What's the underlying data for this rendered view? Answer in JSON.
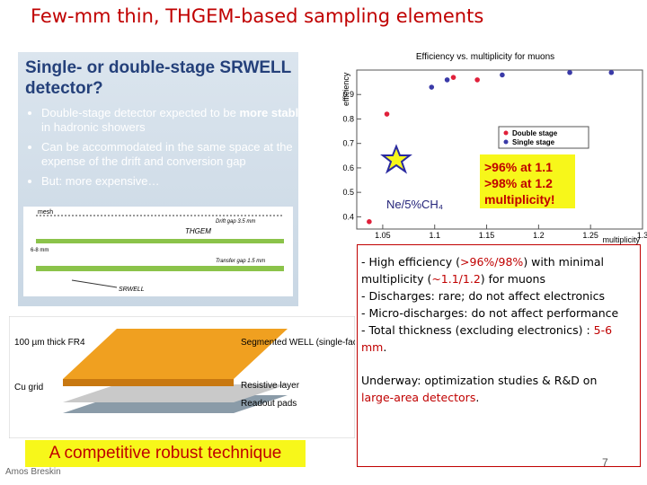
{
  "title": "Few-mm thin, THGEM-based sampling elements",
  "left_panel": {
    "heading": "Single- or double-stage SRWELL detector?",
    "bullets": [
      {
        "runs": [
          {
            "text": "Double-stage detector expected to be "
          },
          {
            "text": "more stable",
            "bold": true
          },
          {
            "text": " in hadronic showers"
          }
        ]
      },
      {
        "runs": [
          {
            "text": "Can be accommodated in the same space at the expense of the drift and conversion gap"
          }
        ]
      },
      {
        "runs": [
          {
            "text": "But: more expensive…"
          }
        ]
      }
    ],
    "diagram_labels": {
      "mesh": "mesh",
      "drift": "Drift gap 3.5 mm",
      "thgem": "THGEM",
      "height": "6-8 mm",
      "transfer": "Transfer gap 1.5 mm",
      "srwell": "SRWELL"
    }
  },
  "lower_diagram": {
    "fr4": "100 µm thick FR4",
    "cu": "Cu grid",
    "well": "Segmented WELL (single-faced THGEM)",
    "resistive": "Resistive layer",
    "pads": "Readout pads"
  },
  "chart_data": {
    "type": "scatter",
    "title": "Efficiency vs. multiplicity for muons",
    "x_label": "multiplicity",
    "y_label": "efficiency",
    "xlim": [
      1.025,
      1.3
    ],
    "ylim": [
      0.35,
      1.0
    ],
    "xticks": [
      1.05,
      1.1,
      1.15,
      1.2,
      1.25,
      1.3
    ],
    "yticks": [
      0.4,
      0.5,
      0.6,
      0.7,
      0.8,
      0.9
    ],
    "series": [
      {
        "name": "Double stage",
        "color": "#e0203a",
        "x": [
          1.037,
          1.054,
          1.118,
          1.141
        ],
        "values": [
          0.38,
          0.82,
          0.97,
          0.96
        ]
      },
      {
        "name": "Single stage",
        "color": "#3a3aa8",
        "x": [
          1.097,
          1.112,
          1.165,
          1.23,
          1.27
        ],
        "values": [
          0.93,
          0.96,
          0.98,
          0.99,
          0.99
        ]
      }
    ],
    "legend": "right",
    "annotations": {
      "gas": "Ne/5%CH₄",
      "box": [
        ">96% at 1.1",
        ">98% at 1.2",
        "multiplicity!"
      ]
    }
  },
  "notes": {
    "paragraphs": [
      {
        "runs": [
          {
            "text": "- High efficiency ("
          },
          {
            "text": ">96%/98%",
            "color": "#c00000"
          },
          {
            "text": ") with minimal multiplicity ("
          },
          {
            "text": "~1.1/1.2",
            "color": "#c00000"
          },
          {
            "text": ") for muons"
          }
        ]
      },
      {
        "runs": [
          {
            "text": "- Discharges: rare; do not affect electronics"
          }
        ]
      },
      {
        "runs": [
          {
            "text": "- Micro-discharges: do not affect performance"
          }
        ]
      },
      {
        "runs": [
          {
            "text": "- Total thickness (excluding electronics) : "
          },
          {
            "text": "5-6 mm",
            "color": "#c00000"
          },
          {
            "text": "."
          }
        ]
      },
      {
        "runs": [
          {
            "text": "Underway: optimization studies & R&D on "
          },
          {
            "text": "large-area detectors",
            "color": "#c00000"
          },
          {
            "text": "."
          }
        ],
        "gap": true
      }
    ]
  },
  "footer": {
    "tagline": "A competitive robust technique",
    "author": "Amos Breskin",
    "page": "7"
  }
}
